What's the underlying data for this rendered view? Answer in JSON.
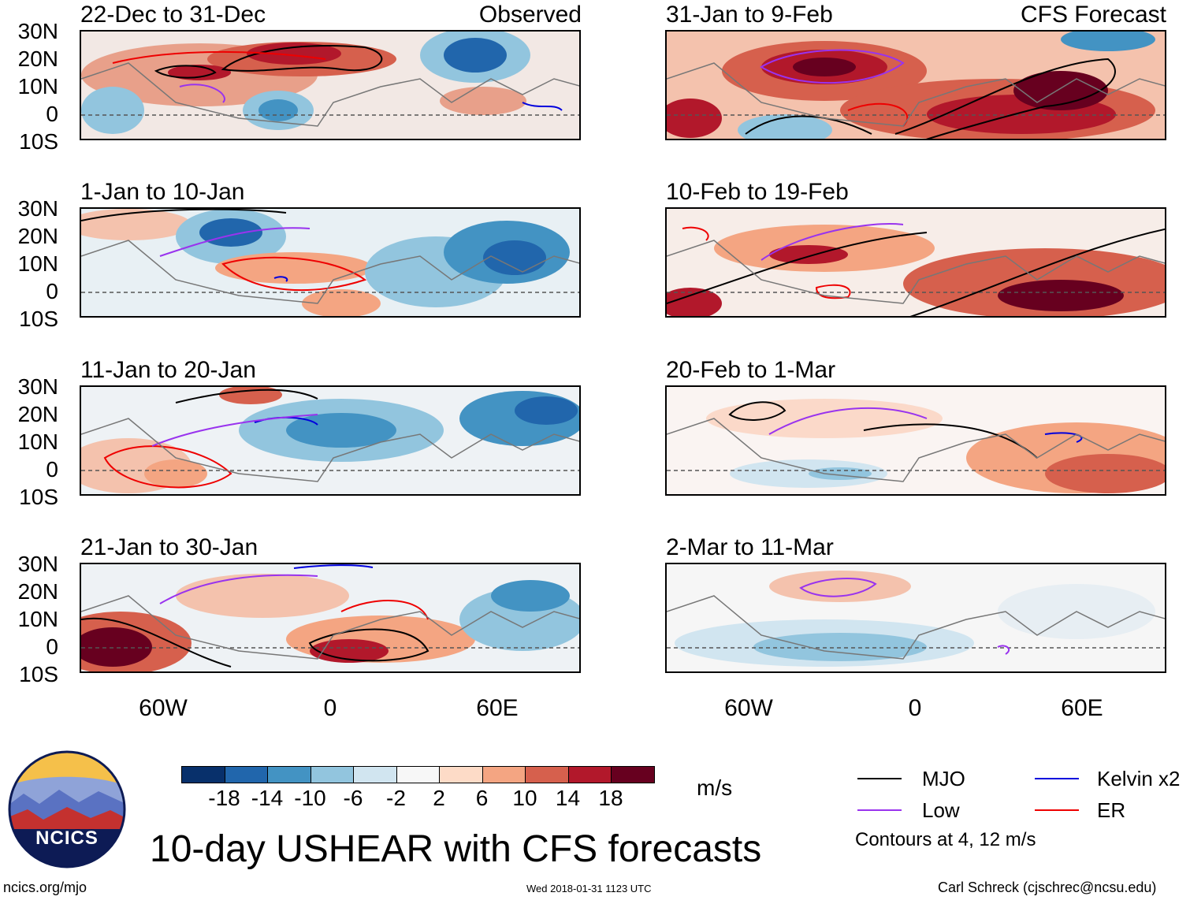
{
  "figure": {
    "main_title": "10-day USHEAR with CFS forecasts",
    "units": "m/s",
    "contours_note": "Contours at 4, 12 m/s",
    "footer_left": "ncics.org/mjo",
    "footer_center": "Wed 2018-01-31 1123 UTC",
    "footer_right": "Carl Schreck (cjschrec@ncsu.edu)",
    "logo_text": "NCICS"
  },
  "columns": {
    "observed_label": "Observed",
    "forecast_label": "CFS Forecast"
  },
  "panels_left": [
    {
      "title": "22-Dec to 31-Dec"
    },
    {
      "title": "1-Jan to 10-Jan"
    },
    {
      "title": "11-Jan to 20-Jan"
    },
    {
      "title": "21-Jan to 30-Jan"
    }
  ],
  "panels_right": [
    {
      "title": "31-Jan to 9-Feb"
    },
    {
      "title": "10-Feb to 19-Feb"
    },
    {
      "title": "20-Feb to 1-Mar"
    },
    {
      "title": "2-Mar to 11-Mar"
    }
  ],
  "axes": {
    "lat_labels": [
      "30N",
      "20N",
      "10N",
      "0",
      "10S"
    ],
    "lon_labels": [
      "60W",
      "0",
      "60E"
    ]
  },
  "colorbar": {
    "colors": [
      "#08306b",
      "#2166ac",
      "#4393c3",
      "#92c5de",
      "#d1e5f0",
      "#f7f7f7",
      "#fddbc7",
      "#f4a582",
      "#d6604d",
      "#b2182b",
      "#67001f"
    ],
    "labels": [
      "-18",
      "-14",
      "-10",
      "-6",
      "-2",
      "2",
      "6",
      "10",
      "14",
      "18"
    ]
  },
  "legend": {
    "items": [
      {
        "label": "MJO",
        "color": "#000000"
      },
      {
        "label": "Kelvin x2",
        "color": "#0000dd"
      },
      {
        "label": "Low",
        "color": "#9933ee"
      },
      {
        "label": "ER",
        "color": "#ee0000"
      }
    ]
  }
}
